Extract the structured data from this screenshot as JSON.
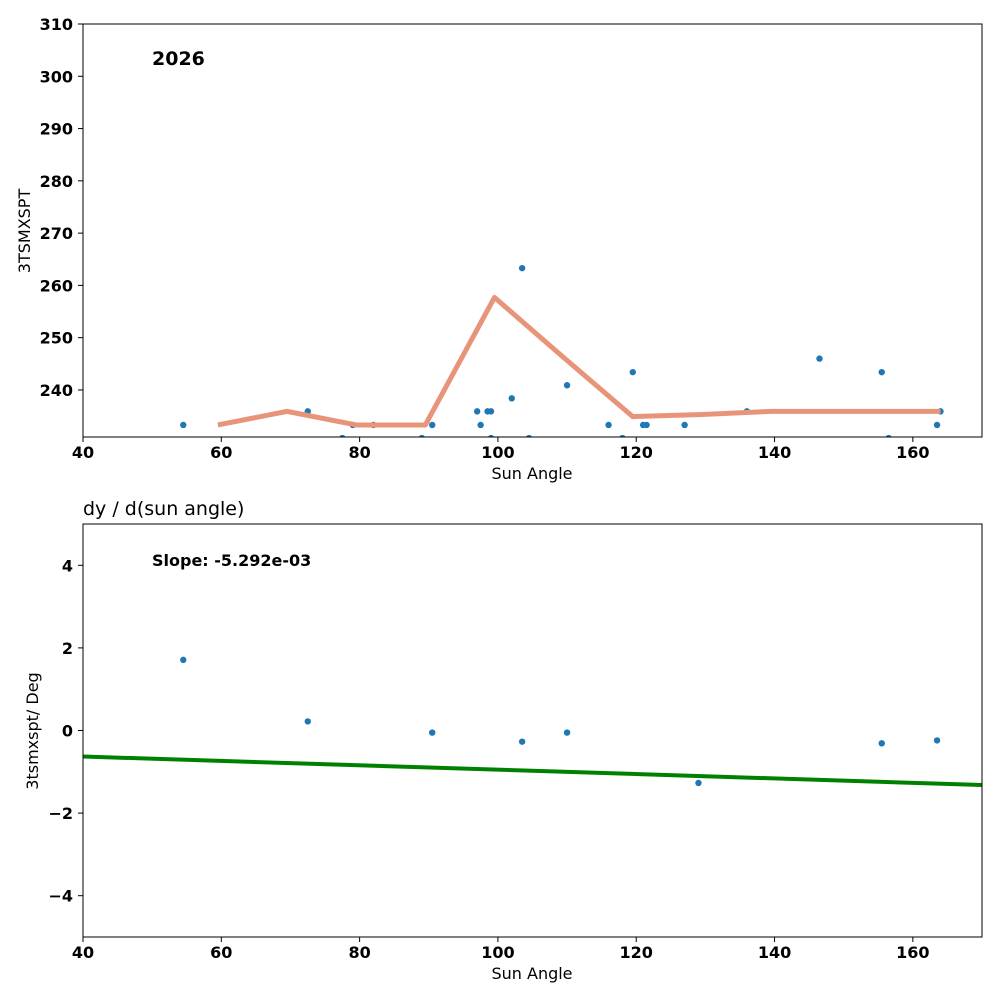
{
  "chart_data": [
    {
      "type": "scatter",
      "annotation": "2026",
      "title": "",
      "xlabel": "Sun Angle",
      "ylabel": "3TSMXSPT",
      "xlim": [
        40,
        170
      ],
      "ylim": [
        231,
        310
      ],
      "xticks": [
        40,
        60,
        80,
        100,
        120,
        140,
        160
      ],
      "yticks": [
        240,
        250,
        260,
        270,
        280,
        290,
        300,
        310
      ],
      "colors": {
        "points": "#1f77b4",
        "line": "#e8947a"
      },
      "series": [
        {
          "name": "samples",
          "kind": "scatter",
          "x": [
            54.5,
            72.5,
            77.5,
            79,
            82,
            89,
            90.5,
            97,
            97.5,
            98.5,
            99,
            99,
            102,
            103.5,
            104.5,
            110,
            116,
            118,
            119.5,
            121,
            121.5,
            127,
            136,
            146.5,
            155.5,
            156.5,
            163.5,
            164
          ],
          "y": [
            233.3,
            235.9,
            230.8,
            233.3,
            233.3,
            230.8,
            233.3,
            235.9,
            233.3,
            235.9,
            235.9,
            230.8,
            238.4,
            263.3,
            230.8,
            240.9,
            233.3,
            230.8,
            243.4,
            233.3,
            233.3,
            233.3,
            235.9,
            246.0,
            243.4,
            230.8,
            233.3,
            235.9
          ]
        },
        {
          "name": "binned mean",
          "kind": "line",
          "x": [
            59.5,
            69.5,
            79.5,
            89.5,
            99.5,
            109.5,
            119.5,
            129.5,
            139.5,
            149.5,
            159.5,
            164
          ],
          "y": [
            233.3,
            235.9,
            233.3,
            233.3,
            257.7,
            246.2,
            234.9,
            235.3,
            235.9,
            235.9,
            235.9,
            235.9
          ]
        }
      ]
    },
    {
      "type": "scatter",
      "title": "dy / d(sun angle)",
      "annotation": "Slope: -5.292e-03",
      "xlabel": "Sun Angle",
      "ylabel": "3tsmxspt/ Deg",
      "xlim": [
        40,
        170
      ],
      "ylim": [
        -5,
        5
      ],
      "xticks": [
        40,
        60,
        80,
        100,
        120,
        140,
        160
      ],
      "yticks": [
        -4,
        -2,
        0,
        2,
        4
      ],
      "ytick_labels": [
        "−4",
        "−2",
        "0",
        "2",
        "4"
      ],
      "colors": {
        "points": "#1f77b4",
        "line": "#008000"
      },
      "series": [
        {
          "name": "derivative",
          "kind": "scatter",
          "x": [
            54.5,
            72.5,
            90.5,
            103.5,
            110,
            129,
            155.5,
            163.5
          ],
          "y": [
            1.71,
            0.22,
            -0.05,
            -0.27,
            -0.05,
            -1.27,
            -0.31,
            -0.24
          ]
        },
        {
          "name": "fit",
          "kind": "line",
          "x": [
            40,
            170
          ],
          "y": [
            -0.63,
            -1.32
          ]
        }
      ]
    }
  ]
}
